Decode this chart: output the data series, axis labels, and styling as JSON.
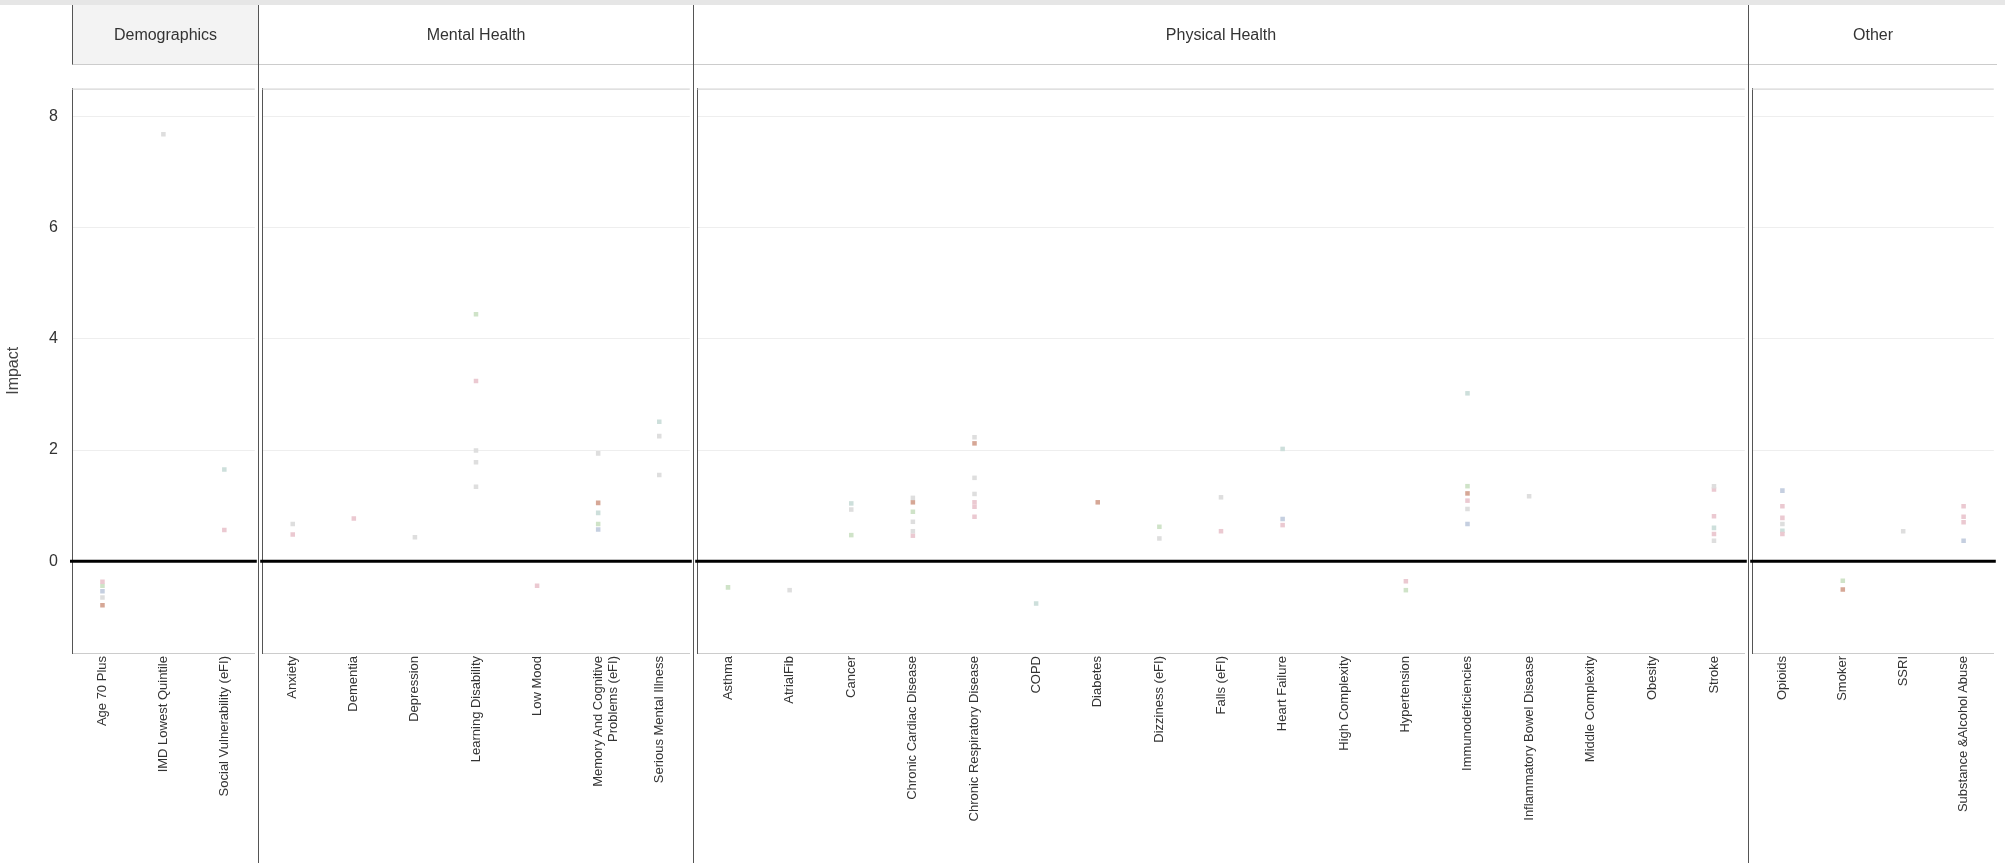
{
  "chart_data": [
    {
      "type": "scatter",
      "marker": "square",
      "title": "Demographics",
      "ylabel": "Impact",
      "categories": [
        "Age 70 Plus",
        "IMD Lowest Quintile",
        "Social Vulnerability (eFI)"
      ],
      "ylim": [
        -1.65,
        8.5
      ],
      "yticks": [
        0,
        2,
        4,
        6,
        8
      ],
      "grid": "y",
      "ref_lines": [
        {
          "axis": "y",
          "value": 0,
          "color": "#000000"
        }
      ],
      "series": [
        {
          "color": "#ebc9d1",
          "x": [
            "Age 70 Plus",
            "Social Vulnerability (eFI)"
          ],
          "values": [
            -0.37,
            0.56
          ]
        },
        {
          "color": "#cfe3c8",
          "x": [
            "Age 70 Plus"
          ],
          "values": [
            -0.44
          ]
        },
        {
          "color": "#c5cfe0",
          "x": [
            "Age 70 Plus"
          ],
          "values": [
            -0.54
          ]
        },
        {
          "color": "#dedede",
          "x": [
            "Age 70 Plus",
            "IMD Lowest Quintile"
          ],
          "values": [
            -0.65,
            7.68
          ]
        },
        {
          "color": "#d6a796",
          "x": [
            "Age 70 Plus"
          ],
          "values": [
            -0.79
          ]
        },
        {
          "color": "#cddfdb",
          "x": [
            "Social Vulnerability (eFI)"
          ],
          "values": [
            1.65
          ]
        }
      ]
    },
    {
      "type": "scatter",
      "marker": "square",
      "title": "Mental Health",
      "categories": [
        "Anxiety",
        "Dementia",
        "Depression",
        "Learning Disability",
        "Low Mood",
        "Memory And Cognitive Problems (eFI)",
        "Serious Mental Illness"
      ],
      "ylim": [
        -1.65,
        8.5
      ],
      "yticks": [
        0,
        2,
        4,
        6,
        8
      ],
      "grid": "y",
      "tick_labels": "x",
      "ref_lines": [
        {
          "axis": "y",
          "value": 0,
          "color": "#000000"
        }
      ],
      "series": [
        {
          "color": "#dedede",
          "x": [
            "Anxiety",
            "Depression",
            "Learning Disability",
            "Learning Disability",
            "Learning Disability",
            "Memory And Cognitive Problems (eFI)",
            "Serious Mental Illness",
            "Serious Mental Illness"
          ],
          "values": [
            0.67,
            0.43,
            1.99,
            1.78,
            1.34,
            1.94,
            2.25,
            1.55
          ]
        },
        {
          "color": "#ebc9d1",
          "x": [
            "Anxiety",
            "Dementia",
            "Learning Disability",
            "Low Mood"
          ],
          "values": [
            0.48,
            0.77,
            3.24,
            -0.44
          ]
        },
        {
          "color": "#cfe3c8",
          "x": [
            "Learning Disability",
            "Memory And Cognitive Problems (eFI)"
          ],
          "values": [
            4.44,
            0.67
          ]
        },
        {
          "color": "#d6a796",
          "x": [
            "Memory And Cognitive Problems (eFI)"
          ],
          "values": [
            1.05
          ]
        },
        {
          "color": "#cddfdb",
          "x": [
            "Memory And Cognitive Problems (eFI)",
            "Serious Mental Illness"
          ],
          "values": [
            0.87,
            2.51
          ]
        },
        {
          "color": "#c5cfe0",
          "x": [
            "Memory And Cognitive Problems (eFI)"
          ],
          "values": [
            0.57
          ]
        }
      ]
    },
    {
      "type": "scatter",
      "marker": "square",
      "title": "Physical Health",
      "categories": [
        "Asthma",
        "AtrialFib",
        "Cancer",
        "Chronic Cardiac Disease",
        "Chronic Respiratory Disease",
        "COPD",
        "Diabetes",
        "Dizziness (eFI)",
        "Falls (eFI)",
        "Heart Failure",
        "High Complexity",
        "Hypertension",
        "Immunodeficiencies",
        "Inflammatory Bowel Disease",
        "Middle Complexity",
        "Obesity",
        "Stroke"
      ],
      "ylim": [
        -1.65,
        8.5
      ],
      "yticks": [
        0,
        2,
        4,
        6,
        8
      ],
      "grid": "y",
      "tick_labels": "x",
      "ref_lines": [
        {
          "axis": "y",
          "value": 0,
          "color": "#000000"
        }
      ],
      "series": [
        {
          "color": "#cfe3c8",
          "x": [
            "Asthma",
            "Cancer",
            "Chronic Cardiac Disease",
            "Dizziness (eFI)",
            "Hypertension",
            "Immunodeficiencies"
          ],
          "values": [
            -0.47,
            0.47,
            0.89,
            0.62,
            -0.52,
            1.35
          ]
        },
        {
          "color": "#dedede",
          "x": [
            "AtrialFib",
            "Cancer",
            "Chronic Cardiac Disease",
            "Chronic Cardiac Disease",
            "Chronic Cardiac Disease",
            "Chronic Respiratory Disease",
            "Chronic Respiratory Disease",
            "Chronic Respiratory Disease",
            "Dizziness (eFI)",
            "Falls (eFI)",
            "Immunodeficiencies",
            "Inflammatory Bowel Disease",
            "Stroke",
            "Stroke"
          ],
          "values": [
            -0.52,
            0.93,
            1.14,
            0.71,
            0.54,
            2.23,
            1.5,
            1.21,
            0.41,
            1.15,
            0.94,
            1.17,
            1.35,
            0.37
          ]
        },
        {
          "color": "#cddfdb",
          "x": [
            "Cancer",
            "COPD",
            "Heart Failure",
            "Immunodeficiencies",
            "Stroke"
          ],
          "values": [
            1.04,
            -0.76,
            2.02,
            3.02,
            0.6
          ]
        },
        {
          "color": "#d6a796",
          "x": [
            "Chronic Cardiac Disease",
            "Chronic Respiratory Disease",
            "Diabetes",
            "Immunodeficiencies"
          ],
          "values": [
            1.06,
            2.12,
            1.06,
            1.22
          ]
        },
        {
          "color": "#ebc9d1",
          "x": [
            "Chronic Cardiac Disease",
            "Chronic Respiratory Disease",
            "Chronic Respiratory Disease",
            "Chronic Respiratory Disease",
            "Falls (eFI)",
            "Heart Failure",
            "Hypertension",
            "Immunodeficiencies",
            "Stroke",
            "Stroke",
            "Stroke"
          ],
          "values": [
            0.46,
            1.06,
            0.98,
            0.8,
            0.54,
            0.65,
            -0.36,
            1.09,
            1.29,
            0.81,
            0.49
          ]
        },
        {
          "color": "#c5cfe0",
          "x": [
            "Heart Failure",
            "Immunodeficiencies"
          ],
          "values": [
            0.76,
            0.67
          ]
        }
      ]
    },
    {
      "type": "scatter",
      "marker": "square",
      "title": "Other",
      "categories": [
        "Opioids",
        "Smoker",
        "SSRI",
        "Substance &Alcohol Abuse"
      ],
      "ylim": [
        -1.65,
        8.5
      ],
      "yticks": [
        0,
        2,
        4,
        6,
        8
      ],
      "grid": "y",
      "tick_labels": "x",
      "ref_lines": [
        {
          "axis": "y",
          "value": 0,
          "color": "#000000"
        }
      ],
      "series": [
        {
          "color": "#c5cfe0",
          "x": [
            "Opioids",
            "Substance &Alcohol Abuse"
          ],
          "values": [
            1.27,
            0.37
          ]
        },
        {
          "color": "#ebc9d1",
          "x": [
            "Opioids",
            "Opioids",
            "Opioids",
            "Substance &Alcohol Abuse",
            "Substance &Alcohol Abuse",
            "Substance &Alcohol Abuse"
          ],
          "values": [
            0.99,
            0.78,
            0.49,
            0.99,
            0.8,
            0.7
          ]
        },
        {
          "color": "#dedede",
          "x": [
            "Opioids",
            "SSRI"
          ],
          "values": [
            0.67,
            0.54
          ]
        },
        {
          "color": "#cddfdb",
          "x": [
            "Opioids"
          ],
          "values": [
            0.55
          ]
        },
        {
          "color": "#cfe3c8",
          "x": [
            "Smoker"
          ],
          "values": [
            -0.35
          ]
        },
        {
          "color": "#d6a796",
          "x": [
            "Smoker"
          ],
          "values": [
            -0.51
          ]
        }
      ]
    }
  ]
}
